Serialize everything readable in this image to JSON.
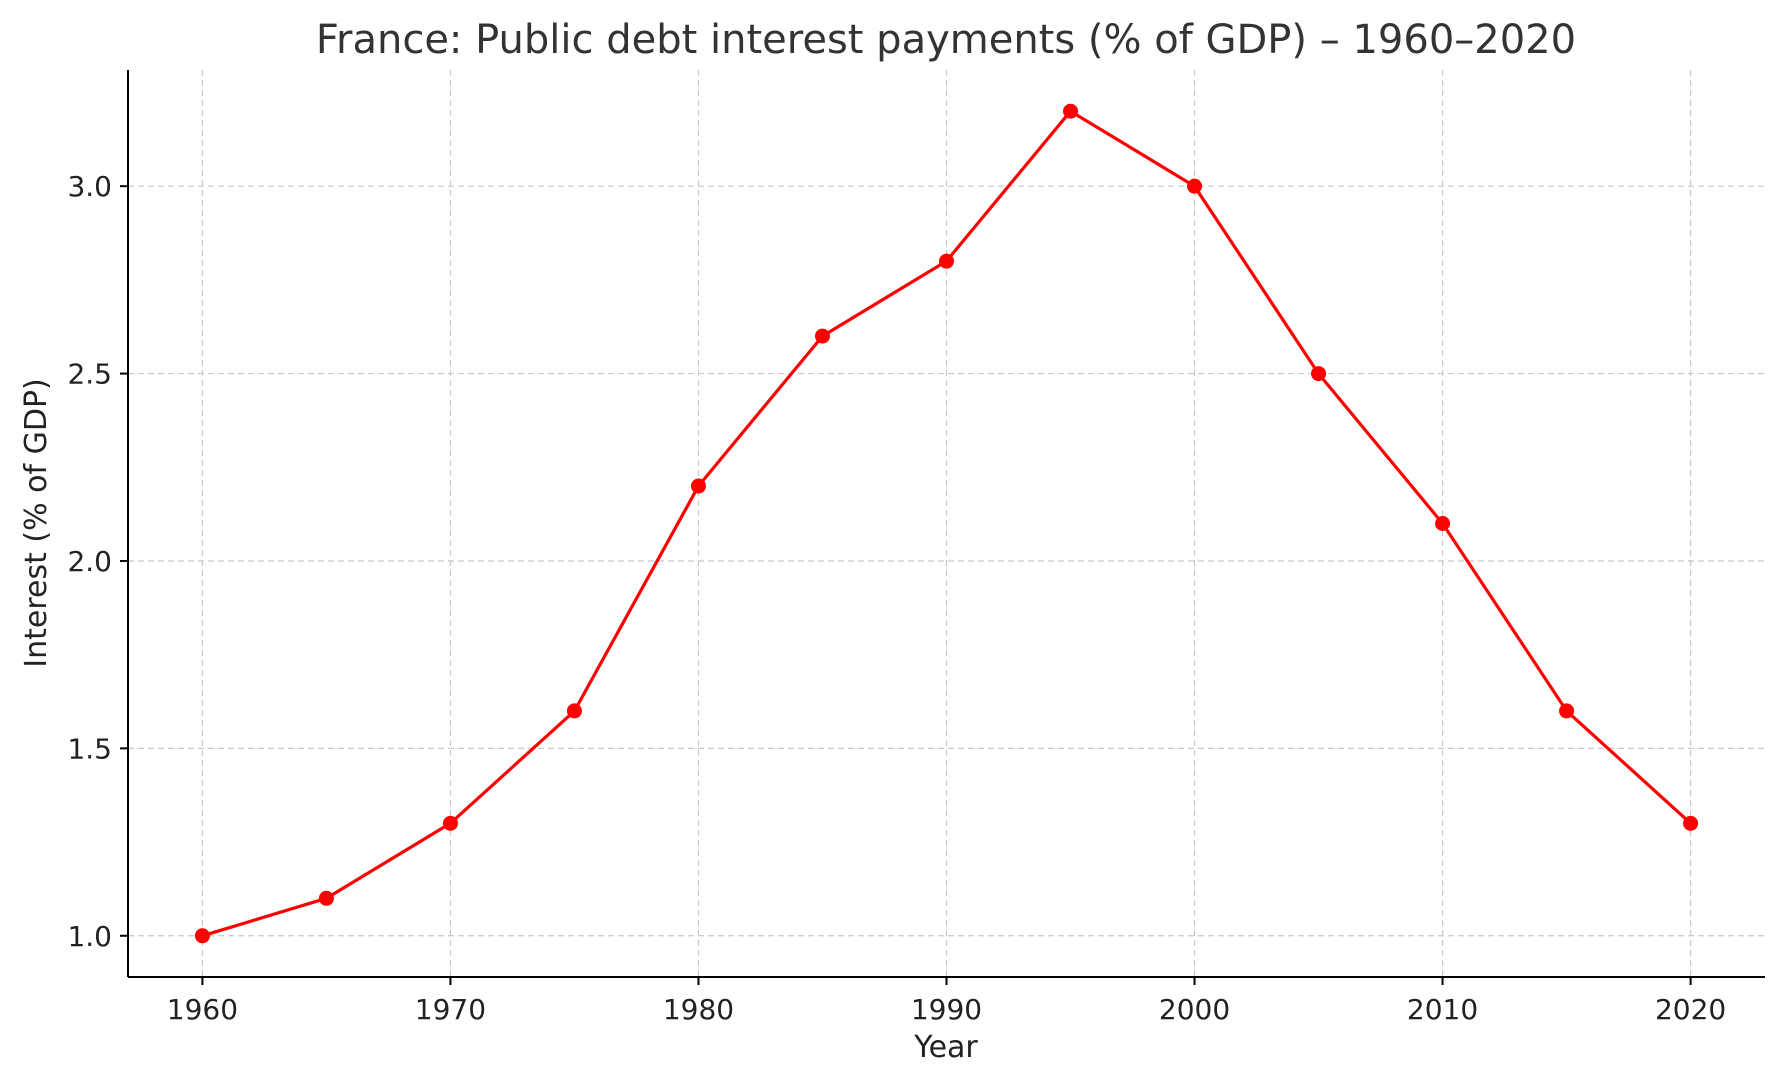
{
  "chart_data": {
    "type": "line",
    "title": "France: Public debt interest payments (% of GDP) – 1960–2020",
    "xlabel": "Year",
    "ylabel": "Interest (% of GDP)",
    "x": [
      1960,
      1965,
      1970,
      1975,
      1980,
      1985,
      1990,
      1995,
      2000,
      2005,
      2010,
      2015,
      2020
    ],
    "series": [
      {
        "color": "#ff0000",
        "values": [
          1.0,
          1.1,
          1.3,
          1.6,
          2.2,
          2.6,
          2.8,
          3.2,
          3.0,
          2.5,
          2.1,
          1.6,
          1.3
        ]
      }
    ],
    "xticks": [
      1960,
      1970,
      1980,
      1990,
      2000,
      2010,
      2020
    ],
    "yticks": [
      "1.0",
      "1.5",
      "2.0",
      "2.5",
      "3.0"
    ],
    "xlim": [
      1957,
      2023
    ],
    "ylim": [
      0.89,
      3.31
    ],
    "grid": true,
    "grid_style": "dashed",
    "marker": "circle"
  }
}
